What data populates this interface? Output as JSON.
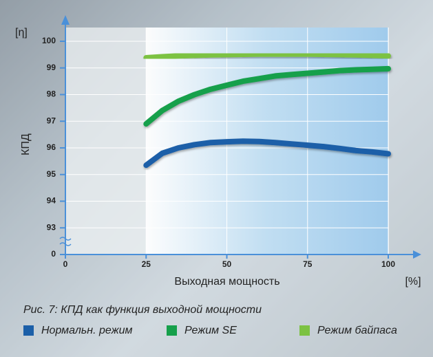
{
  "chart_data": {
    "type": "line",
    "title": "Рис. 7: КПД как функция выходной мощности",
    "x_label": "Выходная мощность",
    "x_unit": "[%]",
    "y_label": "КПД",
    "y_unit": "[η]",
    "x": [
      25,
      30,
      35,
      40,
      45,
      50,
      55,
      60,
      65,
      70,
      75,
      80,
      85,
      90,
      95,
      100
    ],
    "series": [
      {
        "name": "Нормальн. режим",
        "color": "#1b5fa8",
        "values": [
          95.35,
          95.8,
          96.0,
          96.12,
          96.2,
          96.23,
          96.25,
          96.24,
          96.2,
          96.15,
          96.1,
          96.05,
          95.98,
          95.9,
          95.85,
          95.78
        ]
      },
      {
        "name": "Режим SE",
        "color": "#16a04b",
        "values": [
          96.9,
          97.4,
          97.75,
          98.0,
          98.2,
          98.35,
          98.5,
          98.6,
          98.7,
          98.75,
          98.8,
          98.85,
          98.9,
          98.93,
          98.95,
          98.97
        ]
      },
      {
        "name": "Режим байпаса",
        "color": "#7cc242",
        "values": [
          99.38,
          99.42,
          99.45,
          99.47,
          99.49,
          99.5,
          99.51,
          99.52,
          99.52,
          99.52,
          99.52,
          99.51,
          99.5,
          99.49,
          99.47,
          99.45
        ]
      }
    ],
    "xlim": [
      0,
      100
    ],
    "xticks": [
      0,
      25,
      50,
      75,
      100
    ],
    "ylim": [
      0,
      100
    ],
    "y_break": [
      0,
      92
    ],
    "yticks": [
      0,
      93,
      94,
      95,
      96,
      97,
      98,
      99,
      100
    ],
    "shaded_from": 25,
    "grid": true
  }
}
